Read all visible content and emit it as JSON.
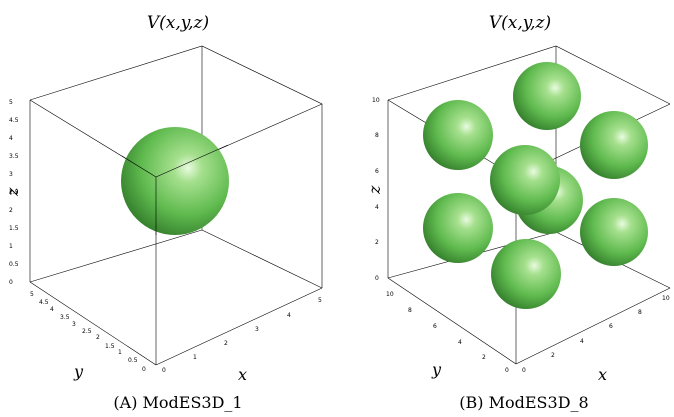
{
  "panels": [
    {
      "title": "V(x,y,z)",
      "caption": "(A) ModES3D_1",
      "axis_labels": {
        "x": "x",
        "y": "y",
        "z": "z"
      },
      "z_ticks": [
        "0",
        "0.5",
        "1",
        "1.5",
        "2",
        "2.5",
        "3",
        "3.5",
        "4",
        "4.5",
        "5"
      ],
      "y_ticks": [
        "5",
        "4.5",
        "4",
        "3.5",
        "3",
        "2.5",
        "2",
        "1.5",
        "1",
        "0.5",
        "0"
      ],
      "x_ticks": [
        "0",
        "1",
        "2",
        "3",
        "4",
        "5"
      ],
      "sphere_count": 1
    },
    {
      "title": "V(x,y,z)",
      "caption": "(B) ModES3D_8",
      "axis_labels": {
        "x": "x",
        "y": "y",
        "z": "z"
      },
      "z_ticks": [
        "0",
        "2",
        "4",
        "6",
        "8",
        "10"
      ],
      "y_ticks": [
        "10",
        "8",
        "6",
        "4",
        "2",
        "0"
      ],
      "x_ticks": [
        "0",
        "2",
        "4",
        "6",
        "8",
        "10"
      ],
      "sphere_count": 8
    }
  ],
  "colors": {
    "sphere_light": "#c9f0b4",
    "sphere_mid": "#6bc45a",
    "sphere_dark": "#2e7a27"
  }
}
